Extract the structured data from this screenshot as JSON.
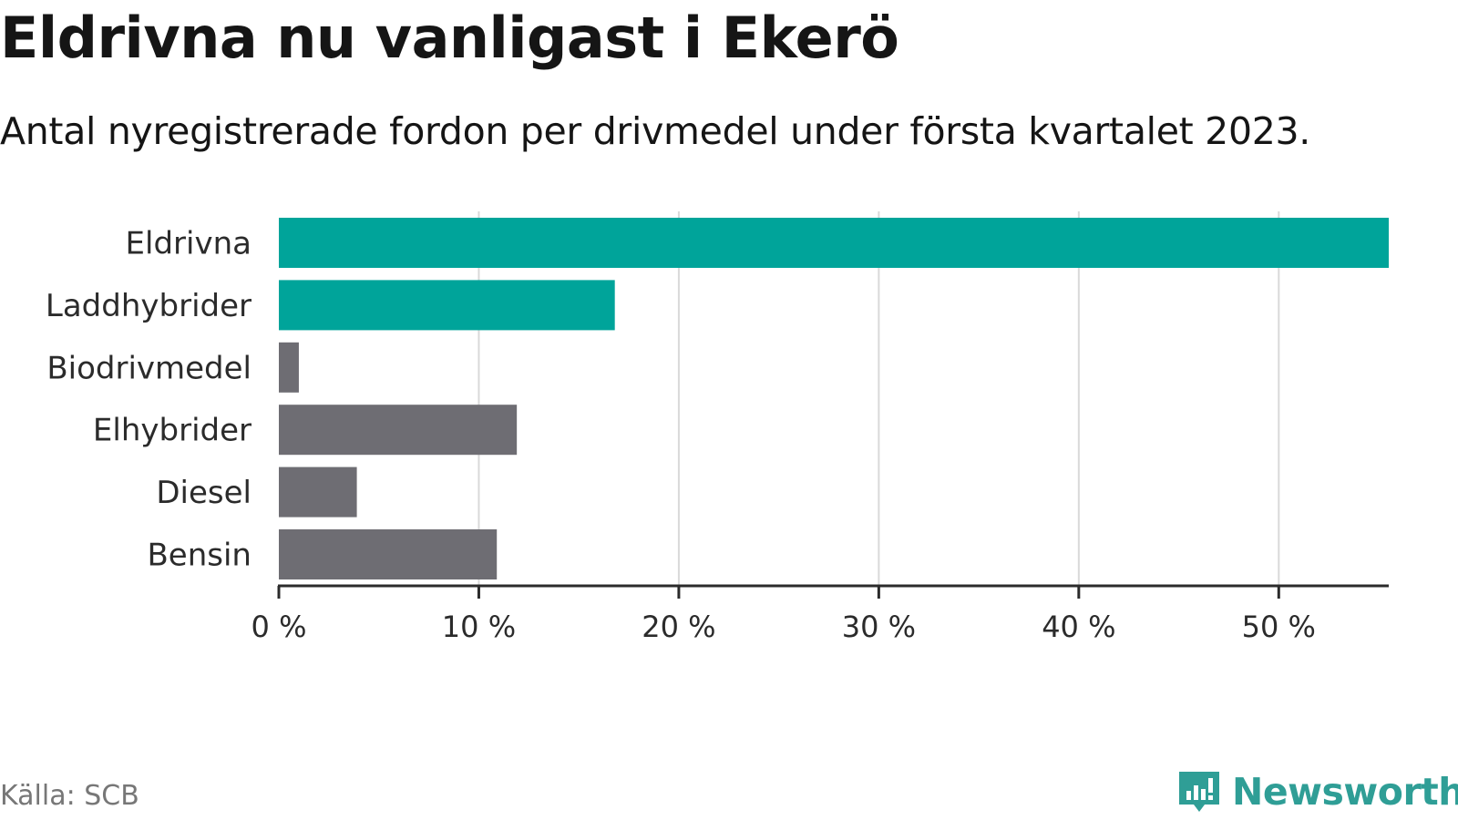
{
  "chart_data": {
    "type": "bar",
    "orientation": "horizontal",
    "title": "Eldrivna nu vanligast i Ekerö",
    "subtitle": "Antal nyregistrerade fordon per drivmedel under första kvartalet 2023.",
    "categories": [
      "Eldrivna",
      "Laddhybrider",
      "Biodrivmedel",
      "Elhybrider",
      "Diesel",
      "Bensin"
    ],
    "values": [
      55.5,
      16.8,
      1.0,
      11.9,
      3.9,
      10.9
    ],
    "unit": "%",
    "xlim": [
      0,
      55.5
    ],
    "xticks": [
      0,
      10,
      20,
      30,
      40,
      50
    ],
    "xtick_labels": [
      "0 %",
      "10 %",
      "20 %",
      "30 %",
      "40 %",
      "50 %"
    ],
    "grid": true,
    "highlight_color": "#00a49a",
    "default_color": "#6e6d73",
    "highlighted_categories": [
      "Eldrivna",
      "Laddhybrider"
    ],
    "source": "Källa: SCB"
  },
  "brand": {
    "name": "Newsworthy",
    "color": "#2f9e96",
    "icon": "newsworthy-logo-icon"
  }
}
